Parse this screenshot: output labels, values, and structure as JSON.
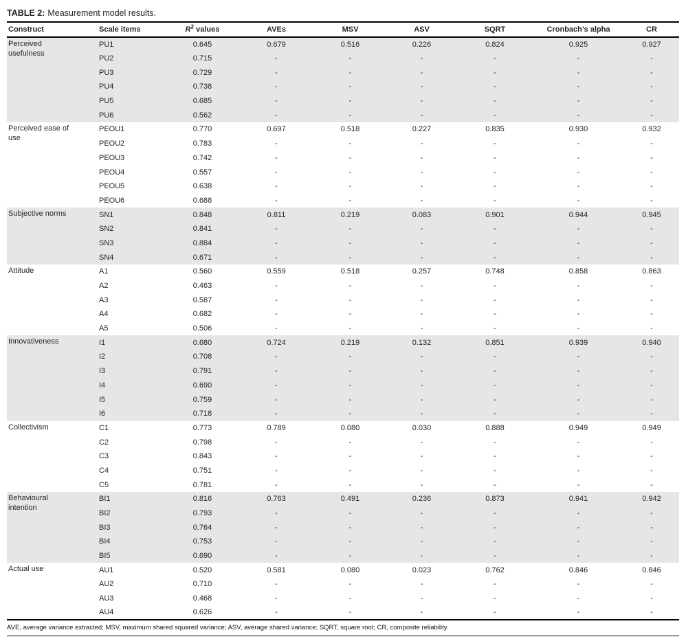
{
  "colors": {
    "shaded_row": "#e6e6e6",
    "rule": "#000000",
    "text": "#231f20",
    "page_bg": "#ffffff"
  },
  "title": {
    "label": "TABLE 2:",
    "caption": "Measurement model results."
  },
  "r2_header": {
    "symbol": "R",
    "sup": "2",
    "suffix": " values"
  },
  "columns": [
    {
      "key": "construct",
      "label": "Construct"
    },
    {
      "key": "item",
      "label": "Scale items"
    },
    {
      "key": "r2",
      "label": "R² values"
    },
    {
      "key": "ave",
      "label": "AVEs"
    },
    {
      "key": "msv",
      "label": "MSV"
    },
    {
      "key": "asv",
      "label": "ASV"
    },
    {
      "key": "sqrt",
      "label": "SQRT"
    },
    {
      "key": "alpha",
      "label": "Cronbach’s alpha"
    },
    {
      "key": "cr",
      "label": "CR"
    }
  ],
  "groups": [
    {
      "construct": "Perceived usefulness",
      "shaded": true,
      "rows": [
        {
          "item": "PU1",
          "r2": "0.645",
          "ave": "0.679",
          "msv": "0.516",
          "asv": "0.226",
          "sqrt": "0.824",
          "alpha": "0.925",
          "cr": "0.927"
        },
        {
          "item": "PU2",
          "r2": "0.715",
          "ave": "-",
          "msv": "-",
          "asv": "-",
          "sqrt": "-",
          "alpha": "-",
          "cr": "-"
        },
        {
          "item": "PU3",
          "r2": "0.729",
          "ave": "-",
          "msv": "-",
          "asv": "-",
          "sqrt": "-",
          "alpha": "-",
          "cr": "-"
        },
        {
          "item": "PU4",
          "r2": "0.738",
          "ave": "-",
          "msv": "-",
          "asv": "-",
          "sqrt": "-",
          "alpha": "-",
          "cr": "-"
        },
        {
          "item": "PU5",
          "r2": "0.685",
          "ave": "-",
          "msv": "-",
          "asv": "-",
          "sqrt": "-",
          "alpha": "-",
          "cr": "-"
        },
        {
          "item": "PU6",
          "r2": "0.562",
          "ave": "-",
          "msv": "-",
          "asv": "-",
          "sqrt": "-",
          "alpha": "-",
          "cr": "-"
        }
      ]
    },
    {
      "construct": "Perceived ease of use",
      "shaded": false,
      "rows": [
        {
          "item": "PEOU1",
          "r2": "0.770",
          "ave": "0.697",
          "msv": "0.518",
          "asv": "0.227",
          "sqrt": "0.835",
          "alpha": "0.930",
          "cr": "0.932"
        },
        {
          "item": "PEOU2",
          "r2": "0.783",
          "ave": "-",
          "msv": "-",
          "asv": "-",
          "sqrt": "-",
          "alpha": "-",
          "cr": "-"
        },
        {
          "item": "PEOU3",
          "r2": "0.742",
          "ave": "-",
          "msv": "-",
          "asv": "-",
          "sqrt": "-",
          "alpha": "-",
          "cr": "-"
        },
        {
          "item": "PEOU4",
          "r2": "0.557",
          "ave": "-",
          "msv": "-",
          "asv": "-",
          "sqrt": "-",
          "alpha": "-",
          "cr": "-"
        },
        {
          "item": "PEOU5",
          "r2": "0.638",
          "ave": "-",
          "msv": "-",
          "asv": "-",
          "sqrt": "-",
          "alpha": "-",
          "cr": "-"
        },
        {
          "item": "PEOU6",
          "r2": "0.688",
          "ave": "-",
          "msv": "-",
          "asv": "-",
          "sqrt": "-",
          "alpha": "-",
          "cr": "-"
        }
      ]
    },
    {
      "construct": "Subjective norms",
      "shaded": true,
      "rows": [
        {
          "item": "SN1",
          "r2": "0.848",
          "ave": "0.811",
          "msv": "0.219",
          "asv": "0.083",
          "sqrt": "0.901",
          "alpha": "0.944",
          "cr": "0.945"
        },
        {
          "item": "SN2",
          "r2": "0.841",
          "ave": "-",
          "msv": "-",
          "asv": "-",
          "sqrt": "-",
          "alpha": "-",
          "cr": "-"
        },
        {
          "item": "SN3",
          "r2": "0.884",
          "ave": "-",
          "msv": "-",
          "asv": "-",
          "sqrt": "-",
          "alpha": "-",
          "cr": "-"
        },
        {
          "item": "SN4",
          "r2": "0.671",
          "ave": "-",
          "msv": "-",
          "asv": "-",
          "sqrt": "-",
          "alpha": "-",
          "cr": "-"
        }
      ]
    },
    {
      "construct": "Attitude",
      "shaded": false,
      "rows": [
        {
          "item": "A1",
          "r2": "0.560",
          "ave": "0.559",
          "msv": "0.518",
          "asv": "0.257",
          "sqrt": "0.748",
          "alpha": "0.858",
          "cr": "0.863"
        },
        {
          "item": "A2",
          "r2": "0.463",
          "ave": "-",
          "msv": "-",
          "asv": "-",
          "sqrt": "-",
          "alpha": "-",
          "cr": "-"
        },
        {
          "item": "A3",
          "r2": "0.587",
          "ave": "-",
          "msv": "-",
          "asv": "-",
          "sqrt": "-",
          "alpha": "-",
          "cr": "-"
        },
        {
          "item": "A4",
          "r2": "0.682",
          "ave": "-",
          "msv": "-",
          "asv": "-",
          "sqrt": "-",
          "alpha": "-",
          "cr": "-"
        },
        {
          "item": "A5",
          "r2": "0.506",
          "ave": "-",
          "msv": "-",
          "asv": "-",
          "sqrt": "-",
          "alpha": "-",
          "cr": "-"
        }
      ]
    },
    {
      "construct": "Innovativeness",
      "shaded": true,
      "rows": [
        {
          "item": "I1",
          "r2": "0.680",
          "ave": "0.724",
          "msv": "0.219",
          "asv": "0.132",
          "sqrt": "0.851",
          "alpha": "0.939",
          "cr": "0.940"
        },
        {
          "item": "I2",
          "r2": "0.708",
          "ave": "-",
          "msv": "-",
          "asv": "-",
          "sqrt": "-",
          "alpha": "-",
          "cr": "-"
        },
        {
          "item": "I3",
          "r2": "0.791",
          "ave": "-",
          "msv": "-",
          "asv": "-",
          "sqrt": "-",
          "alpha": "-",
          "cr": "-"
        },
        {
          "item": "I4",
          "r2": "0.690",
          "ave": "-",
          "msv": "-",
          "asv": "-",
          "sqrt": "-",
          "alpha": "-",
          "cr": "-"
        },
        {
          "item": "I5",
          "r2": "0.759",
          "ave": "-",
          "msv": "-",
          "asv": "-",
          "sqrt": "-",
          "alpha": "-",
          "cr": "-"
        },
        {
          "item": "I6",
          "r2": "0.718",
          "ave": "-",
          "msv": "-",
          "asv": "-",
          "sqrt": "-",
          "alpha": "-",
          "cr": "-"
        }
      ]
    },
    {
      "construct": "Collectivism",
      "shaded": false,
      "rows": [
        {
          "item": "C1",
          "r2": "0.773",
          "ave": "0.789",
          "msv": "0.080",
          "asv": "0.030",
          "sqrt": "0.888",
          "alpha": "0.949",
          "cr": "0.949"
        },
        {
          "item": "C2",
          "r2": "0.798",
          "ave": "-",
          "msv": "-",
          "asv": "-",
          "sqrt": "-",
          "alpha": "-",
          "cr": "-"
        },
        {
          "item": "C3",
          "r2": "0.843",
          "ave": "-",
          "msv": "-",
          "asv": "-",
          "sqrt": "-",
          "alpha": "-",
          "cr": "-"
        },
        {
          "item": "C4",
          "r2": "0.751",
          "ave": "-",
          "msv": "-",
          "asv": "-",
          "sqrt": "-",
          "alpha": "-",
          "cr": "-"
        },
        {
          "item": "C5",
          "r2": "0.781",
          "ave": "-",
          "msv": "-",
          "asv": "-",
          "sqrt": "-",
          "alpha": "-",
          "cr": "-"
        }
      ]
    },
    {
      "construct": "Behavioural intention",
      "shaded": true,
      "rows": [
        {
          "item": "BI1",
          "r2": "0.816",
          "ave": "0.763",
          "msv": "0.491",
          "asv": "0.236",
          "sqrt": "0.873",
          "alpha": "0.941",
          "cr": "0.942"
        },
        {
          "item": "BI2",
          "r2": "0.793",
          "ave": "-",
          "msv": "-",
          "asv": "-",
          "sqrt": "-",
          "alpha": "-",
          "cr": "-"
        },
        {
          "item": "BI3",
          "r2": "0.764",
          "ave": "-",
          "msv": "-",
          "asv": "-",
          "sqrt": "-",
          "alpha": "-",
          "cr": "-"
        },
        {
          "item": "BI4",
          "r2": "0.753",
          "ave": "-",
          "msv": "-",
          "asv": "-",
          "sqrt": "-",
          "alpha": "-",
          "cr": "-"
        },
        {
          "item": "BI5",
          "r2": "0.690",
          "ave": "-",
          "msv": "-",
          "asv": "-",
          "sqrt": "-",
          "alpha": "-",
          "cr": "-"
        }
      ]
    },
    {
      "construct": "Actual use",
      "shaded": false,
      "rows": [
        {
          "item": "AU1",
          "r2": "0.520",
          "ave": "0.581",
          "msv": "0.080",
          "asv": "0.023",
          "sqrt": "0.762",
          "alpha": "0.846",
          "cr": "0.846"
        },
        {
          "item": "AU2",
          "r2": "0.710",
          "ave": "-",
          "msv": "-",
          "asv": "-",
          "sqrt": "-",
          "alpha": "-",
          "cr": "-"
        },
        {
          "item": "AU3",
          "r2": "0.468",
          "ave": "-",
          "msv": "-",
          "asv": "-",
          "sqrt": "-",
          "alpha": "-",
          "cr": "-"
        },
        {
          "item": "AU4",
          "r2": "0.626",
          "ave": "-",
          "msv": "-",
          "asv": "-",
          "sqrt": "-",
          "alpha": "-",
          "cr": "-"
        }
      ]
    }
  ],
  "footnote": "AVE, average variance extracted; MSV, maximum shared squared variance; ASV, average shared variance; SQRT, square root; CR, composite reliability."
}
